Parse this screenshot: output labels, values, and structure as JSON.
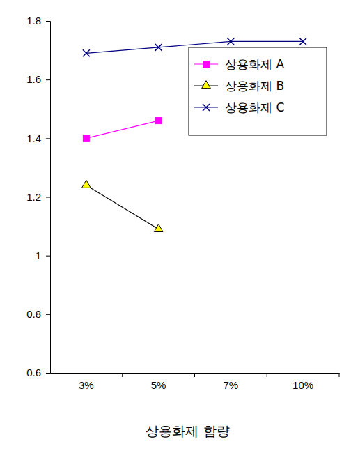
{
  "chart_data": {
    "type": "line",
    "x_label": "상용화제 함량",
    "categories": [
      "3%",
      "5%",
      "7%",
      "10%"
    ],
    "series": [
      {
        "name": "상용화제 A",
        "color": "#ff00ff",
        "marker": "square",
        "values": [
          1.4,
          1.46,
          null,
          null
        ]
      },
      {
        "name": "상용화제 B",
        "color": "#000000",
        "marker": "triangle",
        "values": [
          1.24,
          1.09,
          null,
          null
        ]
      },
      {
        "name": "상용화제 C",
        "color": "#000080",
        "marker": "x",
        "values": [
          1.69,
          1.71,
          1.73,
          1.73
        ]
      }
    ],
    "ylim": [
      0.6,
      1.8
    ],
    "yticks": [
      0.6,
      0.8,
      1,
      1.2,
      1.4,
      1.6,
      1.8
    ],
    "grid": false,
    "legend": "upper right"
  }
}
